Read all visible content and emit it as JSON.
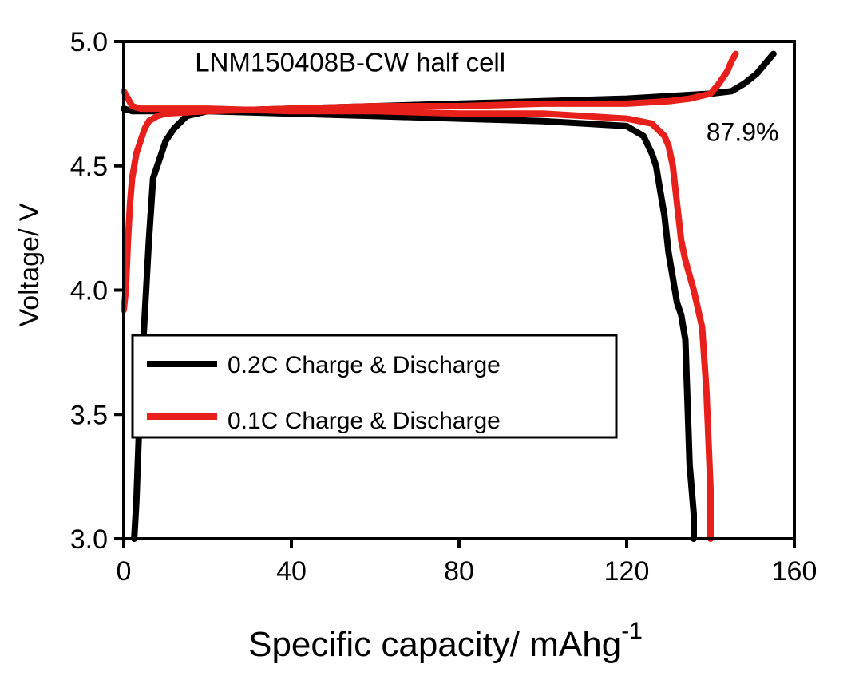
{
  "chart_data": {
    "type": "line",
    "title": "",
    "xlabel": "Specific capacity/ mAhg",
    "xlabel_sup": "-1",
    "ylabel": "Voltage/ V",
    "xlim": [
      0,
      160
    ],
    "ylim": [
      3.0,
      5.0
    ],
    "x_ticks": [
      0,
      40,
      80,
      120,
      160
    ],
    "x_tick_labels": [
      "0",
      "40",
      "80",
      "120",
      "160"
    ],
    "y_ticks": [
      3.0,
      3.5,
      4.0,
      4.5,
      5.0
    ],
    "y_tick_labels": [
      "3.0",
      "3.5",
      "4.0",
      "4.5",
      "5.0"
    ],
    "grid": false,
    "legend_position": "bottom-left",
    "annotations": [
      {
        "text": "LNM150408B-CW half cell",
        "x": 17,
        "y": 4.88
      },
      {
        "text": "87.9%",
        "x": 139,
        "y": 4.6
      }
    ],
    "series": [
      {
        "name": "0.2C Charge & Discharge",
        "color": "#000000",
        "charge": {
          "x": [
            2.5,
            3,
            4,
            5,
            6,
            7,
            8,
            10,
            12,
            15,
            20,
            40,
            60,
            80,
            100,
            120,
            130,
            140,
            145,
            148,
            151,
            153,
            155
          ],
          "y": [
            3.0,
            3.15,
            3.6,
            3.9,
            4.2,
            4.45,
            4.5,
            4.6,
            4.65,
            4.7,
            4.72,
            4.73,
            4.74,
            4.75,
            4.76,
            4.77,
            4.78,
            4.79,
            4.8,
            4.83,
            4.87,
            4.91,
            4.95
          ]
        },
        "discharge": {
          "x": [
            0,
            2,
            5,
            10,
            20,
            40,
            60,
            80,
            100,
            110,
            120,
            124,
            126,
            127,
            128,
            129,
            130,
            131,
            132,
            133,
            134,
            135,
            136,
            136
          ],
          "y": [
            4.73,
            4.72,
            4.72,
            4.72,
            4.72,
            4.71,
            4.7,
            4.69,
            4.68,
            4.67,
            4.66,
            4.62,
            4.55,
            4.5,
            4.4,
            4.3,
            4.15,
            4.05,
            3.95,
            3.9,
            3.8,
            3.3,
            3.1,
            3.0
          ]
        }
      },
      {
        "name": "0.1C Charge & Discharge",
        "color": "#e8201c",
        "charge": {
          "x": [
            0,
            0.5,
            1,
            1.5,
            2,
            3,
            4,
            5,
            6,
            8,
            10,
            20,
            40,
            60,
            80,
            100,
            120,
            130,
            135,
            140,
            142,
            144,
            145,
            146
          ],
          "y": [
            3.92,
            4.0,
            4.2,
            4.35,
            4.45,
            4.55,
            4.6,
            4.65,
            4.68,
            4.7,
            4.71,
            4.72,
            4.73,
            4.74,
            4.74,
            4.75,
            4.75,
            4.76,
            4.77,
            4.79,
            4.83,
            4.88,
            4.92,
            4.95
          ]
        },
        "discharge": {
          "x": [
            0,
            1,
            2,
            4,
            8,
            20,
            40,
            60,
            80,
            100,
            110,
            120,
            126,
            129,
            130,
            131,
            132,
            133,
            134,
            136,
            138,
            139,
            140,
            140
          ],
          "y": [
            4.8,
            4.77,
            4.74,
            4.73,
            4.73,
            4.73,
            4.72,
            4.72,
            4.71,
            4.71,
            4.7,
            4.69,
            4.67,
            4.62,
            4.58,
            4.5,
            4.35,
            4.2,
            4.12,
            4.0,
            3.85,
            3.6,
            3.2,
            3.0
          ]
        }
      }
    ]
  }
}
